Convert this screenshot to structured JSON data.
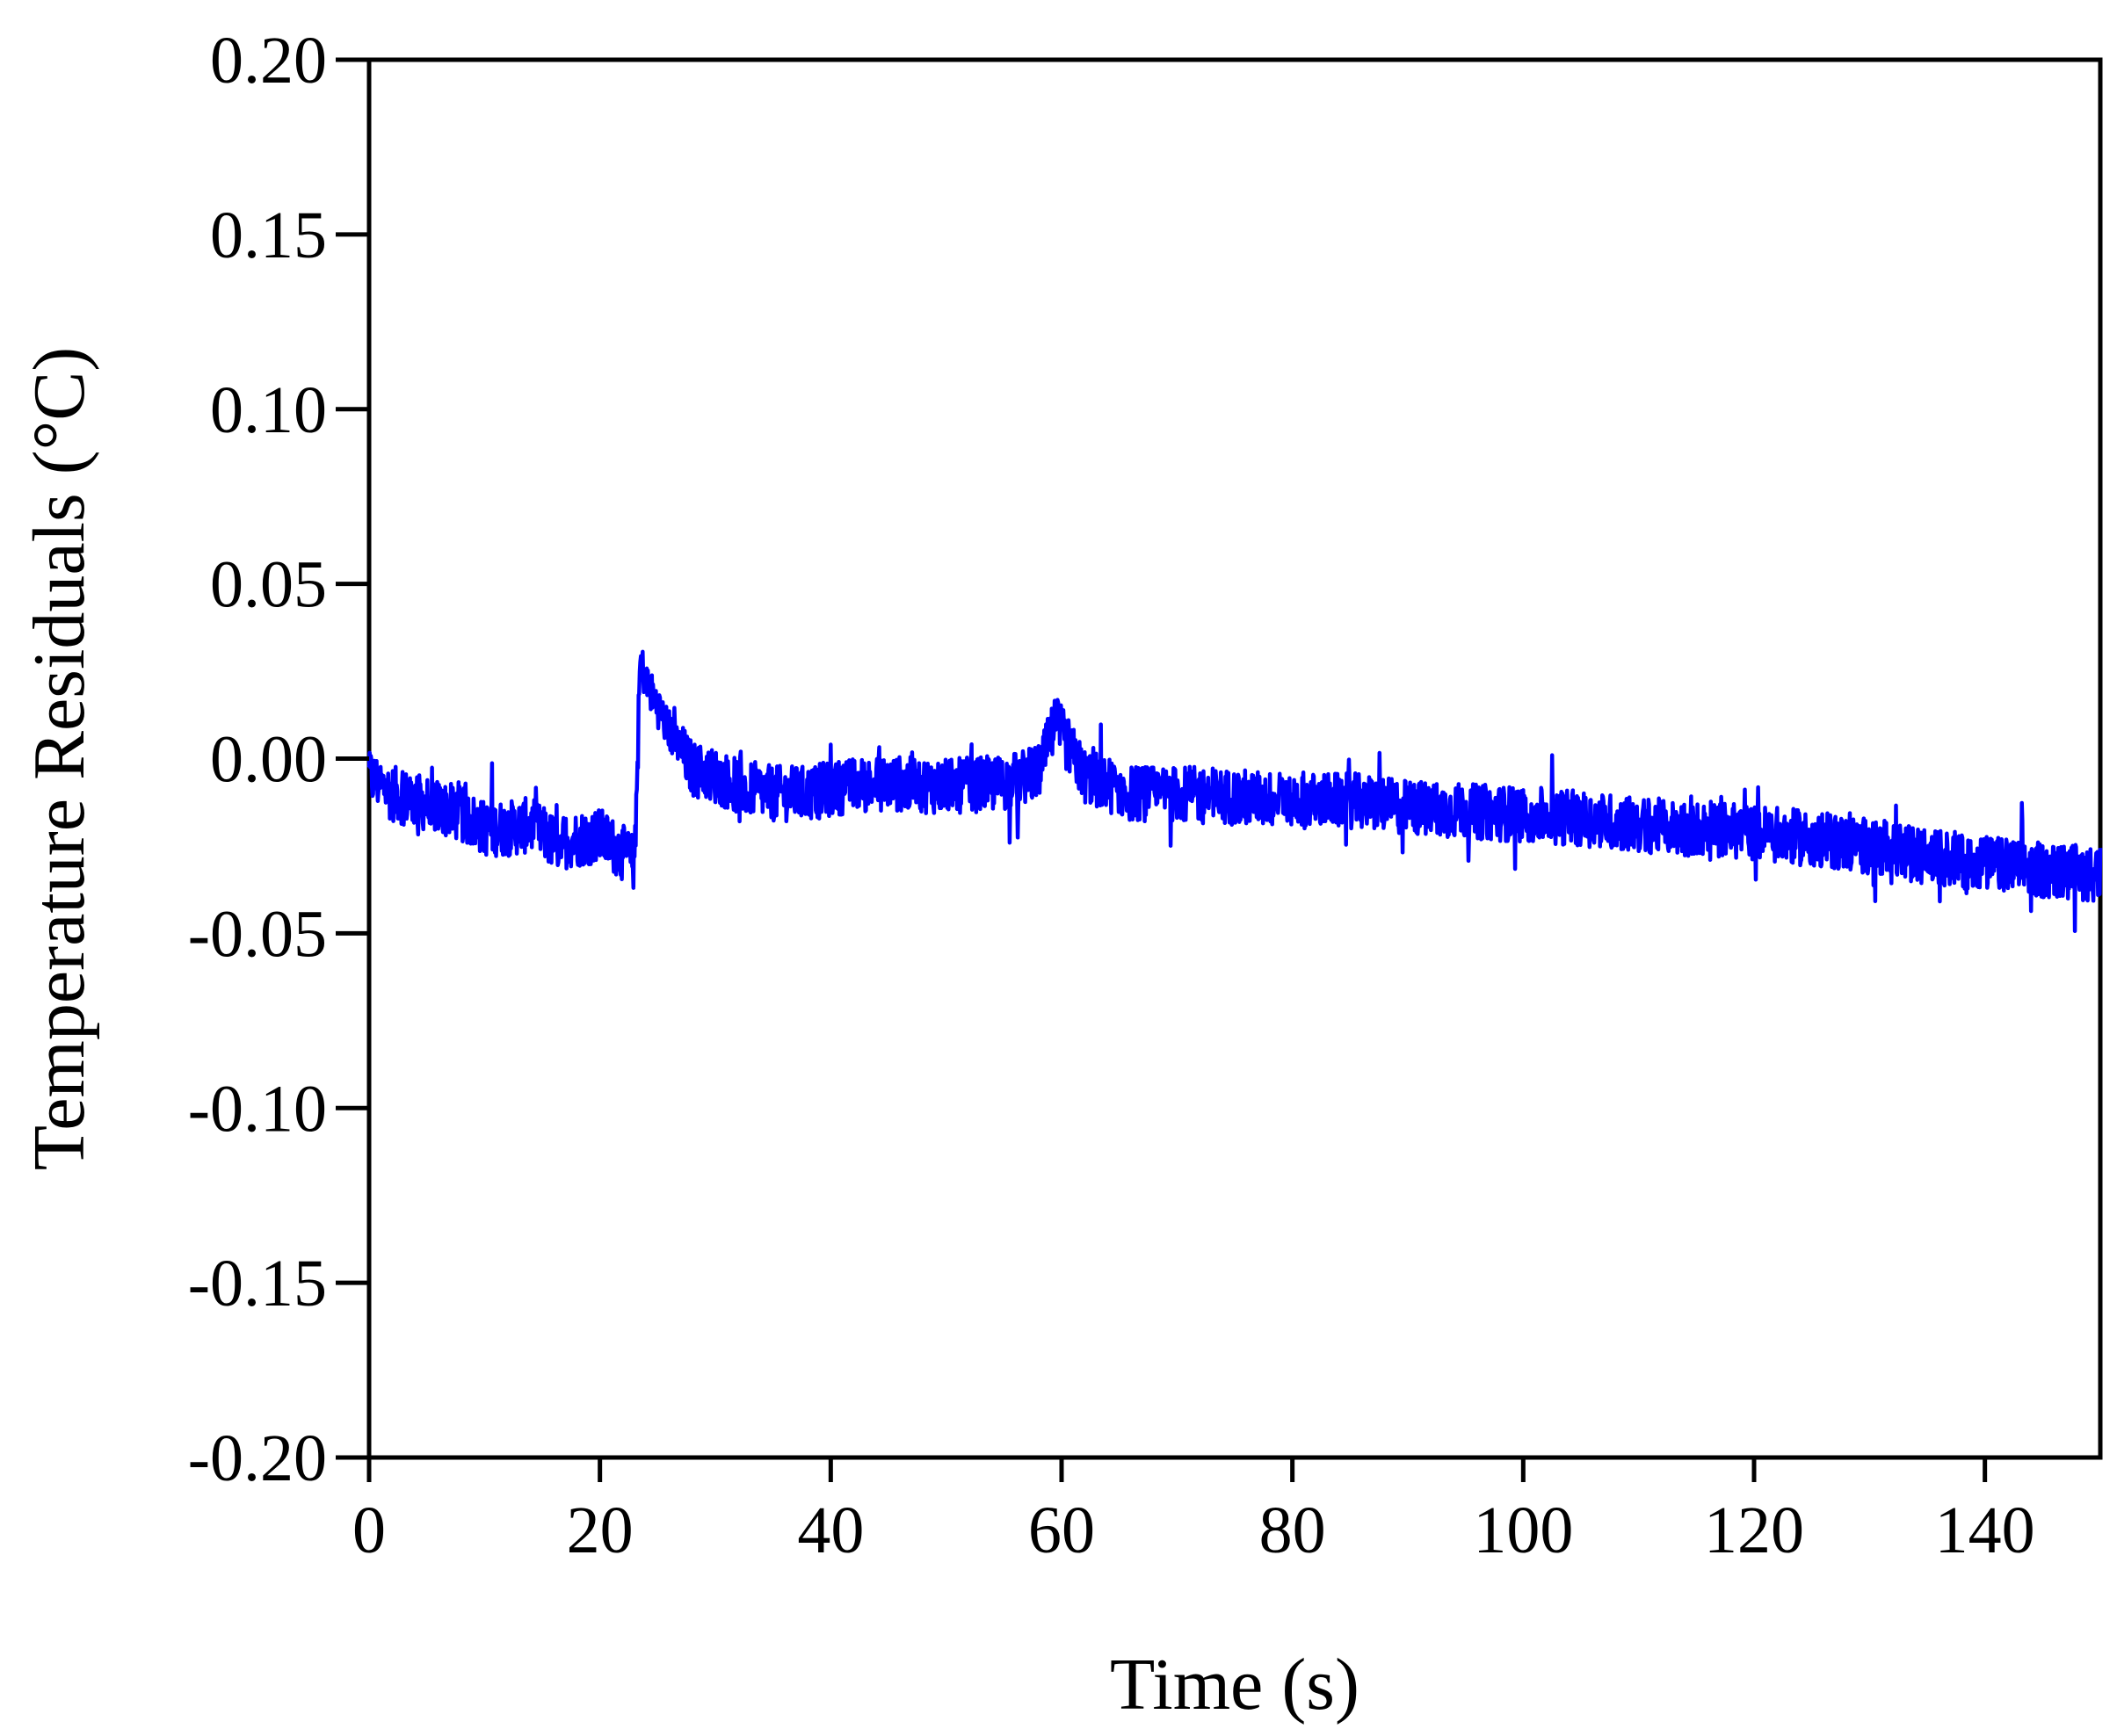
{
  "chart_data": {
    "type": "line",
    "title": "",
    "xlabel": "Time (s)",
    "ylabel": "Temperature Residuals (°C)",
    "xlim": [
      0,
      150
    ],
    "ylim": [
      -0.2,
      0.2
    ],
    "x_ticks": [
      0,
      20,
      40,
      60,
      80,
      100,
      120,
      140
    ],
    "y_ticks": [
      0.2,
      0.15,
      0.1,
      0.05,
      0.0,
      -0.05,
      -0.1,
      -0.15,
      -0.2
    ],
    "x_tick_labels": [
      "0",
      "20",
      "40",
      "60",
      "80",
      "100",
      "120",
      "140"
    ],
    "y_tick_labels": [
      "0.20",
      "0.15",
      "0.10",
      "0.05",
      "0.00",
      "-0.05",
      "-0.10",
      "-0.15",
      "-0.20"
    ],
    "grid": false,
    "legend": "none",
    "series": [
      {
        "color": "#0000ff",
        "x": [
          0,
          2,
          4,
          6,
          8,
          10,
          12,
          14,
          16,
          18,
          20,
          22,
          23,
          23.5,
          24,
          26,
          28,
          30,
          32,
          35,
          38,
          41,
          45,
          50,
          55,
          58,
          59.5,
          62,
          66,
          70,
          75,
          80,
          85,
          90,
          95,
          100,
          105,
          110,
          115,
          120,
          125,
          130,
          135,
          140,
          145,
          150
        ],
        "y": [
          -0.005,
          -0.01,
          -0.012,
          -0.014,
          -0.016,
          -0.02,
          -0.02,
          -0.019,
          -0.024,
          -0.023,
          -0.022,
          -0.027,
          -0.03,
          0.028,
          0.022,
          0.008,
          -0.003,
          -0.005,
          -0.008,
          -0.01,
          -0.01,
          -0.008,
          -0.007,
          -0.008,
          -0.007,
          -0.004,
          0.01,
          -0.005,
          -0.01,
          -0.01,
          -0.011,
          -0.012,
          -0.012,
          -0.014,
          -0.015,
          -0.016,
          -0.017,
          -0.019,
          -0.02,
          -0.021,
          -0.023,
          -0.025,
          -0.028,
          -0.03,
          -0.032,
          -0.033
        ]
      }
    ]
  }
}
